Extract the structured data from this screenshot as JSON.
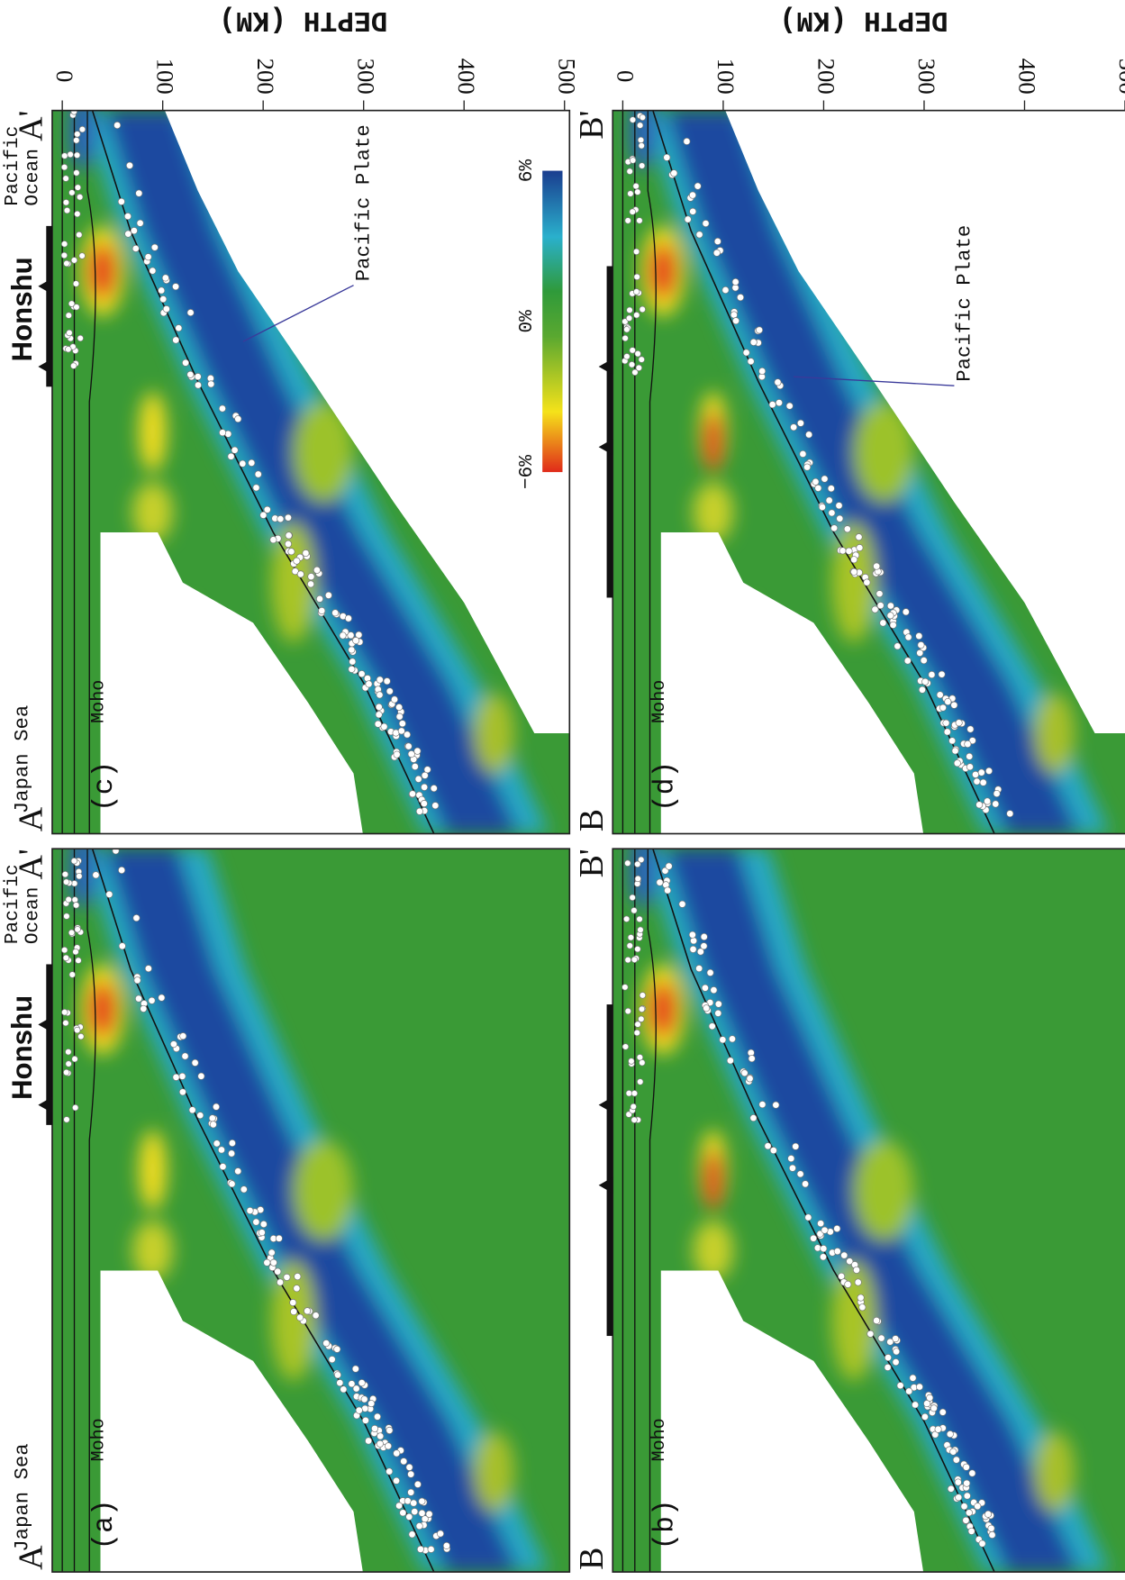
{
  "panels": [
    {
      "label": "(a)",
      "start": "A",
      "end": "A'"
    },
    {
      "label": "(c)",
      "start": "A",
      "end": "A'"
    },
    {
      "label": "(b)",
      "start": "B",
      "end": "B'"
    },
    {
      "label": "(d)",
      "start": "B",
      "end": "B'"
    }
  ],
  "top_labels": {
    "west": "Japan Sea",
    "center": "Honshu",
    "east": [
      "Pacific",
      "Ocean"
    ]
  },
  "moho": "Moho",
  "plate": "Pacific Plate",
  "colorbar": {
    "min": "−6%",
    "mid": "0%",
    "max": "6%"
  },
  "depth_axis": {
    "label": "DEPTH (KM)",
    "ticks": [
      0,
      100,
      200,
      300,
      400,
      500
    ]
  }
}
